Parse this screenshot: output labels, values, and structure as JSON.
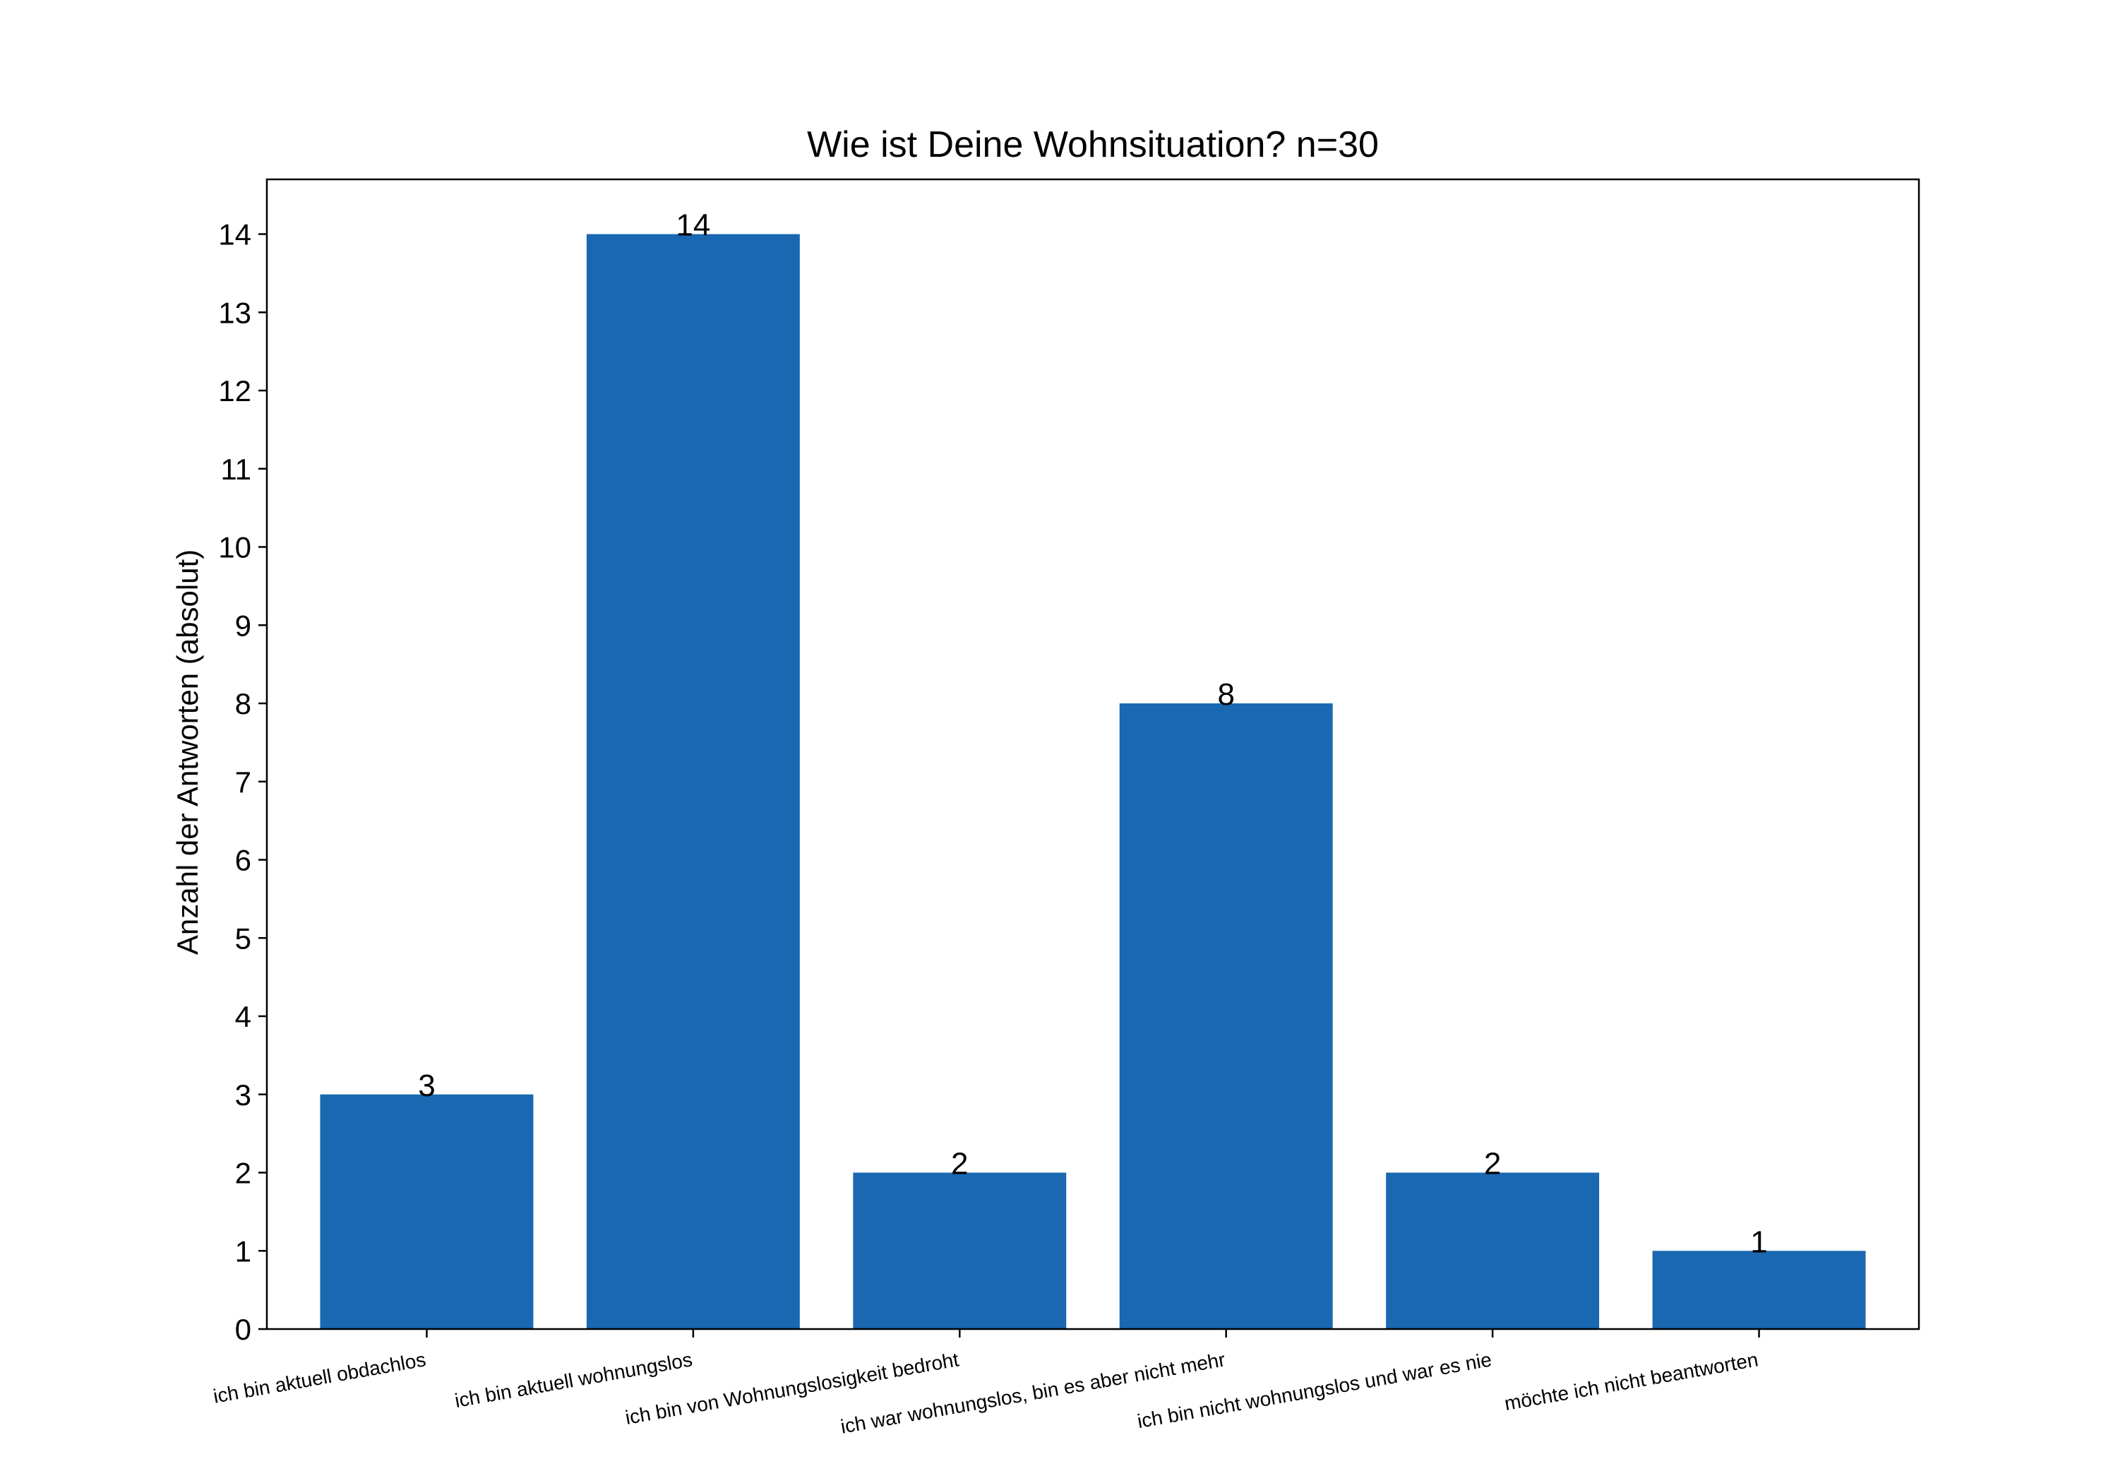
{
  "chart_data": {
    "type": "bar",
    "title": "Wie ist Deine Wohnsituation? n=30",
    "xlabel": "",
    "ylabel": "Anzahl der Antworten (absolut)",
    "categories": [
      "ich bin aktuell obdachlos",
      "ich bin aktuell wohnungslos",
      "ich bin von Wohnungslosigkeit bedroht",
      "ich war wohnungslos, bin es aber nicht mehr",
      "ich bin nicht wohnungslos und war es nie",
      "möchte ich nicht beantworten"
    ],
    "values": [
      3,
      14,
      2,
      8,
      2,
      1
    ],
    "data_labels": [
      "3",
      "14",
      "2",
      "8",
      "2",
      "1"
    ],
    "yticks": [
      0,
      1,
      2,
      3,
      4,
      5,
      6,
      7,
      8,
      9,
      10,
      11,
      12,
      13,
      14
    ],
    "ylim": [
      0,
      14.7
    ],
    "bar_color": "#1a68b1",
    "grid": false,
    "legend": "none"
  }
}
